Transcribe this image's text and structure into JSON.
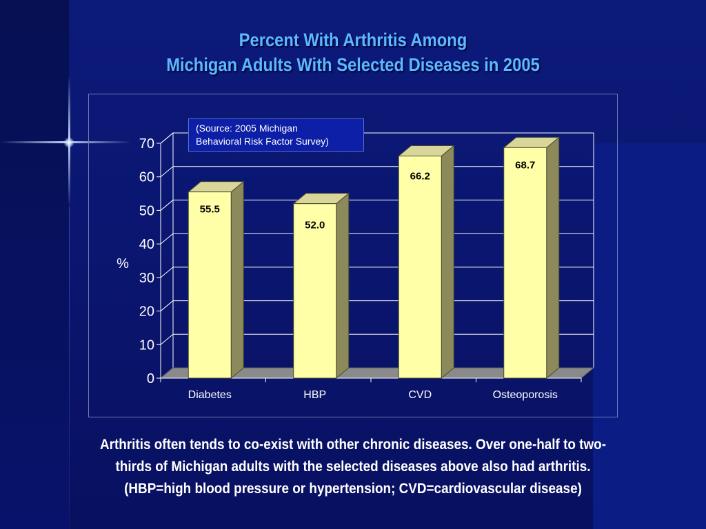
{
  "slide": {
    "title_line1": "Percent With Arthritis Among",
    "title_line2": "Michigan Adults With Selected Diseases in 2005",
    "source_line1": "(Source: 2005 Michigan",
    "source_line2": "Behavioral Risk Factor Survey)",
    "caption_line1": "Arthritis often tends to co-exist with other chronic diseases.  Over one-half to two-",
    "caption_line2": "thirds of Michigan adults with the selected diseases above also had arthritis.",
    "caption_line3": "(HBP=high blood pressure or hypertension; CVD=cardiovascular disease)"
  },
  "colors": {
    "bar_front": "#ffffa8",
    "bar_side": "#8c8a5a",
    "bar_top": "#d8d698",
    "floor": "#8a8a8a",
    "grid": "#ffffff",
    "text": "#ffffff",
    "title": "#5cb8ff"
  },
  "chart_data": {
    "type": "bar",
    "title": "Percent With Arthritis Among Michigan Adults With Selected Diseases in 2005",
    "categories": [
      "Diabetes",
      "HBP",
      "CVD",
      "Osteoporosis"
    ],
    "values": [
      55.5,
      52.0,
      66.2,
      68.7
    ],
    "value_labels": [
      "55.5",
      "52.0",
      "66.2",
      "68.7"
    ],
    "xlabel": "",
    "ylabel": "%",
    "ylim": [
      0,
      70
    ],
    "yticks": [
      0,
      10,
      20,
      30,
      40,
      50,
      60,
      70
    ],
    "grid": true,
    "style": "3d"
  }
}
